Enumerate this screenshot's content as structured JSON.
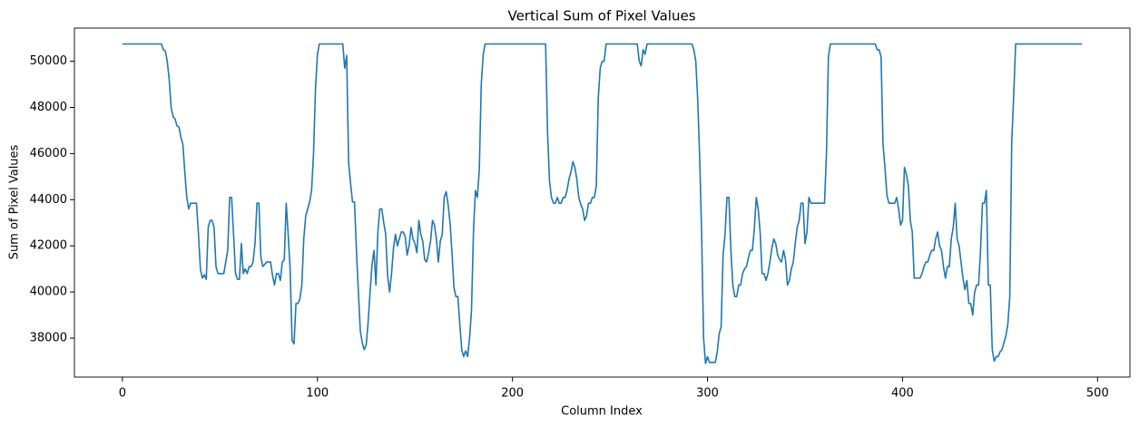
{
  "chart_data": {
    "type": "line",
    "title": "Vertical Sum of Pixel Values",
    "x_label": "Column Index",
    "y_label": "Sum of Pixel Values",
    "color": "#1f77b4",
    "grid": false,
    "xlim": [
      -24.6,
      516.6
    ],
    "ylim": [
      36313,
      51437
    ],
    "xticks": [
      0,
      100,
      200,
      300,
      400,
      500
    ],
    "yticks": [
      38000,
      40000,
      42000,
      44000,
      46000,
      48000,
      50000
    ],
    "x": [
      0,
      20,
      21,
      22,
      23,
      24,
      25,
      26,
      27,
      28,
      29,
      30,
      31,
      32,
      33,
      34,
      35,
      38,
      39,
      40,
      41,
      42,
      43,
      44,
      45,
      46,
      47,
      48,
      49,
      52,
      53,
      54,
      55,
      56,
      57,
      58,
      59,
      60,
      61,
      62,
      63,
      64,
      65,
      66,
      67,
      68,
      69,
      70,
      71,
      72,
      74,
      76,
      77,
      78,
      79,
      80,
      81,
      82,
      83,
      84,
      85,
      86,
      87,
      88,
      89,
      90,
      91,
      92,
      93,
      94,
      95,
      96,
      97,
      98,
      99,
      100,
      101,
      113,
      114,
      115,
      116,
      117,
      118,
      119,
      120,
      121,
      122,
      123,
      124,
      125,
      126,
      127,
      128,
      129,
      130,
      131,
      132,
      133,
      134,
      135,
      136,
      137,
      138,
      139,
      140,
      141,
      142,
      143,
      144,
      145,
      146,
      147,
      148,
      149,
      150,
      151,
      152,
      153,
      154,
      155,
      156,
      157,
      158,
      159,
      160,
      161,
      162,
      163,
      164,
      165,
      166,
      167,
      168,
      169,
      170,
      171,
      172,
      173,
      174,
      175,
      176,
      177,
      178,
      179,
      180,
      181,
      182,
      183,
      184,
      185,
      186,
      217,
      218,
      219,
      220,
      221,
      222,
      223,
      224,
      225,
      226,
      227,
      228,
      229,
      230,
      231,
      232,
      233,
      234,
      235,
      236,
      237,
      238,
      239,
      240,
      241,
      242,
      243,
      244,
      245,
      246,
      247,
      248,
      264,
      265,
      266,
      267,
      268,
      269,
      292,
      293,
      294,
      295,
      296,
      297,
      298,
      299,
      300,
      301,
      304,
      305,
      306,
      307,
      308,
      309,
      310,
      311,
      312,
      313,
      314,
      315,
      316,
      317,
      318,
      319,
      320,
      321,
      322,
      323,
      324,
      325,
      326,
      327,
      328,
      329,
      330,
      331,
      332,
      333,
      334,
      335,
      336,
      337,
      338,
      339,
      340,
      341,
      342,
      343,
      344,
      345,
      346,
      347,
      348,
      349,
      350,
      351,
      352,
      353,
      360,
      361,
      362,
      363,
      386,
      387,
      388,
      389,
      390,
      391,
      392,
      393,
      396,
      397,
      398,
      399,
      400,
      401,
      402,
      403,
      404,
      405,
      406,
      409,
      410,
      411,
      412,
      413,
      414,
      415,
      416,
      417,
      418,
      419,
      420,
      421,
      422,
      423,
      424,
      425,
      426,
      427,
      428,
      429,
      430,
      431,
      432,
      433,
      434,
      435,
      436,
      437,
      438,
      439,
      440,
      441,
      442,
      443,
      444,
      445,
      446,
      447,
      448,
      449,
      450,
      451,
      452,
      453,
      454,
      455,
      456,
      457,
      458,
      492
    ],
    "values": [
      50750,
      50750,
      50500,
      50450,
      50000,
      49200,
      48000,
      47600,
      47500,
      47200,
      47150,
      46700,
      46400,
      45200,
      44100,
      43600,
      43850,
      43850,
      42500,
      41000,
      40600,
      40750,
      40550,
      42800,
      43100,
      43100,
      42800,
      41100,
      40800,
      40800,
      41300,
      41800,
      44100,
      44100,
      42500,
      40800,
      40550,
      40550,
      42100,
      40800,
      41000,
      40800,
      41100,
      41100,
      41300,
      42100,
      43850,
      43850,
      41500,
      41100,
      41300,
      41300,
      40700,
      40300,
      40800,
      40800,
      40500,
      41300,
      41400,
      43850,
      42500,
      41000,
      37900,
      37750,
      39500,
      39500,
      39700,
      40300,
      42300,
      43300,
      43600,
      43900,
      44400,
      46000,
      48800,
      50300,
      50750,
      50750,
      49700,
      50250,
      45600,
      44700,
      43900,
      43900,
      41800,
      40000,
      38300,
      37800,
      37500,
      37700,
      38700,
      40000,
      41200,
      41800,
      40300,
      42600,
      43600,
      43600,
      43000,
      42500,
      40700,
      40000,
      40800,
      41900,
      42500,
      42000,
      42300,
      42600,
      42600,
      42400,
      41600,
      42000,
      42800,
      42300,
      42100,
      41700,
      43100,
      42500,
      42200,
      41400,
      41300,
      41700,
      42200,
      43100,
      42900,
      42300,
      41300,
      42200,
      42500,
      44100,
      44350,
      43800,
      43000,
      41700,
      40200,
      39800,
      39800,
      38600,
      37500,
      37200,
      37450,
      37200,
      38000,
      39200,
      42600,
      44400,
      44100,
      45300,
      49000,
      50300,
      50750,
      50750,
      46900,
      44800,
      44100,
      43850,
      43850,
      44100,
      43850,
      43850,
      44100,
      44100,
      44400,
      44900,
      45200,
      45650,
      45400,
      44900,
      44100,
      43800,
      43600,
      43100,
      43300,
      43850,
      43850,
      44100,
      44100,
      44600,
      48400,
      49700,
      50000,
      50000,
      50750,
      50750,
      50000,
      49800,
      50500,
      50300,
      50750,
      50750,
      50500,
      50000,
      48300,
      45800,
      42500,
      38000,
      36900,
      37200,
      36950,
      36950,
      37400,
      38200,
      38500,
      41600,
      42500,
      44100,
      44100,
      41800,
      40300,
      39800,
      39800,
      40300,
      40300,
      40800,
      41000,
      41100,
      41500,
      41800,
      41800,
      42700,
      44100,
      43600,
      42600,
      40800,
      40800,
      40500,
      40800,
      41300,
      41900,
      42300,
      42100,
      41600,
      41400,
      41300,
      41800,
      41400,
      40300,
      40500,
      41000,
      41300,
      42100,
      42800,
      43100,
      43850,
      43850,
      42100,
      42600,
      44100,
      43850,
      43850,
      46000,
      50200,
      50750,
      50750,
      50500,
      50500,
      50200,
      46400,
      45400,
      44200,
      43850,
      43850,
      44100,
      43600,
      42900,
      43100,
      45400,
      45100,
      44600,
      43100,
      42600,
      40600,
      40600,
      40800,
      41100,
      41300,
      41300,
      41600,
      41800,
      41800,
      42300,
      42600,
      42000,
      41800,
      41100,
      40600,
      41100,
      41100,
      42300,
      42800,
      43850,
      42300,
      42000,
      41300,
      40600,
      40100,
      40500,
      39500,
      39500,
      39000,
      40000,
      40300,
      40300,
      41800,
      43850,
      43850,
      44400,
      40300,
      40300,
      37500,
      37000,
      37200,
      37200,
      37400,
      37500,
      37800,
      38100,
      38600,
      39800,
      46500,
      48500,
      50750,
      50750
    ]
  }
}
